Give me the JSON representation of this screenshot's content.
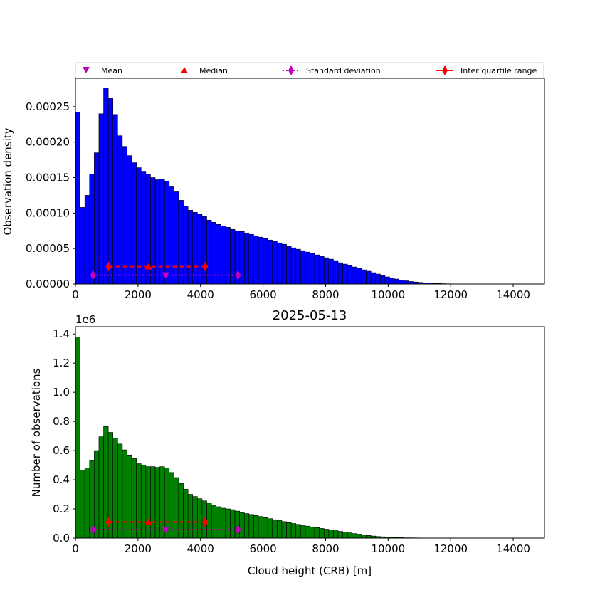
{
  "legend": {
    "items": [
      {
        "label": "Mean",
        "marker": "triangle-down",
        "color": "#bf00bf"
      },
      {
        "label": "Median",
        "marker": "triangle-up",
        "color": "#ff0000"
      },
      {
        "label": "Standard deviation",
        "marker": "diamond-dotted-line",
        "color": "#bf00bf"
      },
      {
        "label": "Inter quartile range",
        "marker": "diamond-solid-line",
        "color": "#ff0000"
      }
    ]
  },
  "chart_data": [
    {
      "type": "bar",
      "title": "",
      "xlabel": "",
      "ylabel": "Observation density",
      "xlim": [
        0,
        15000
      ],
      "ylim": [
        0,
        0.00029
      ],
      "xticks": [
        "0",
        "2000",
        "4000",
        "6000",
        "8000",
        "10000",
        "12000",
        "14000"
      ],
      "yticks": [
        "0.00000",
        "0.00005",
        "0.00010",
        "0.00015",
        "0.00020",
        "0.00025"
      ],
      "bar_color": "#0000ff",
      "bin_width": 150,
      "bin_start": 0,
      "values": [
        0.000242,
        0.000108,
        0.000125,
        0.000155,
        0.000185,
        0.00024,
        0.000276,
        0.000262,
        0.000239,
        0.000209,
        0.000194,
        0.000181,
        0.000171,
        0.000164,
        0.000159,
        0.000155,
        0.00015,
        0.000147,
        0.000148,
        0.000145,
        0.000137,
        0.00013,
        0.000118,
        0.00011,
        0.000104,
        0.000101,
        9.8e-05,
        9.5e-05,
        9e-05,
        8.7e-05,
        8.4e-05,
        8.2e-05,
        8e-05,
        7.7e-05,
        7.5e-05,
        7.4e-05,
        7.2e-05,
        7e-05,
        6.8e-05,
        6.6e-05,
        6.4e-05,
        6.2e-05,
        6e-05,
        5.8e-05,
        5.6e-05,
        5.3e-05,
        5.1e-05,
        4.9e-05,
        4.7e-05,
        4.5e-05,
        4.3e-05,
        4.1e-05,
        3.9e-05,
        3.7e-05,
        3.5e-05,
        3.3e-05,
        3e-05,
        2.8e-05,
        2.6e-05,
        2.4e-05,
        2.2e-05,
        2e-05,
        1.8e-05,
        1.6e-05,
        1.4e-05,
        1.2e-05,
        1e-05,
        8.5e-06,
        7e-06,
        5.5e-06,
        4.5e-06,
        3.5e-06,
        2.8e-06,
        2.2e-06,
        1.7e-06,
        1.3e-06,
        1e-06,
        7e-07,
        5e-07,
        3e-07
      ],
      "stats": {
        "mean": {
          "x": 2880,
          "y": 1.25e-05
        },
        "median": {
          "x": 2340,
          "y": 2.45e-05
        },
        "std_range": {
          "x": [
            560,
            5200
          ],
          "y": 1.25e-05
        },
        "iqr_range": {
          "x": [
            1060,
            4150
          ],
          "y": 2.45e-05
        }
      }
    },
    {
      "type": "bar",
      "title": "2025-05-13",
      "xlabel": "Cloud height (CRB) [m]",
      "ylabel": "Number of observations",
      "y_scale_label": "1e6",
      "xlim": [
        0,
        15000
      ],
      "ylim": [
        0,
        1.45
      ],
      "xticks": [
        "0",
        "2000",
        "4000",
        "6000",
        "8000",
        "10000",
        "12000",
        "14000"
      ],
      "yticks": [
        "0.0",
        "0.2",
        "0.4",
        "0.6",
        "0.8",
        "1.0",
        "1.2",
        "1.4"
      ],
      "bar_color": "#008000",
      "bin_width": 150,
      "bin_start": 0,
      "values": [
        1.38,
        0.465,
        0.48,
        0.535,
        0.6,
        0.695,
        0.765,
        0.725,
        0.685,
        0.645,
        0.605,
        0.57,
        0.545,
        0.51,
        0.5,
        0.49,
        0.49,
        0.485,
        0.49,
        0.48,
        0.45,
        0.415,
        0.375,
        0.335,
        0.3,
        0.285,
        0.27,
        0.255,
        0.24,
        0.225,
        0.215,
        0.205,
        0.2,
        0.195,
        0.185,
        0.175,
        0.168,
        0.162,
        0.155,
        0.148,
        0.14,
        0.133,
        0.126,
        0.12,
        0.113,
        0.106,
        0.1,
        0.094,
        0.088,
        0.082,
        0.077,
        0.072,
        0.066,
        0.061,
        0.056,
        0.051,
        0.046,
        0.041,
        0.036,
        0.031,
        0.027,
        0.022,
        0.018,
        0.014,
        0.011,
        0.009,
        0.007,
        0.005,
        0.004,
        0.003,
        0.002,
        0.0018,
        0.0014,
        0.001,
        0.0007,
        0.0005,
        0.0003,
        0.0002,
        0.0001,
        5e-05
      ],
      "stats": {
        "mean": {
          "x": 2880,
          "y": 0.058
        },
        "median": {
          "x": 2340,
          "y": 0.11
        },
        "std_range": {
          "x": [
            560,
            5200
          ],
          "y": 0.058
        },
        "iqr_range": {
          "x": [
            1060,
            4150
          ],
          "y": 0.11
        }
      }
    }
  ]
}
